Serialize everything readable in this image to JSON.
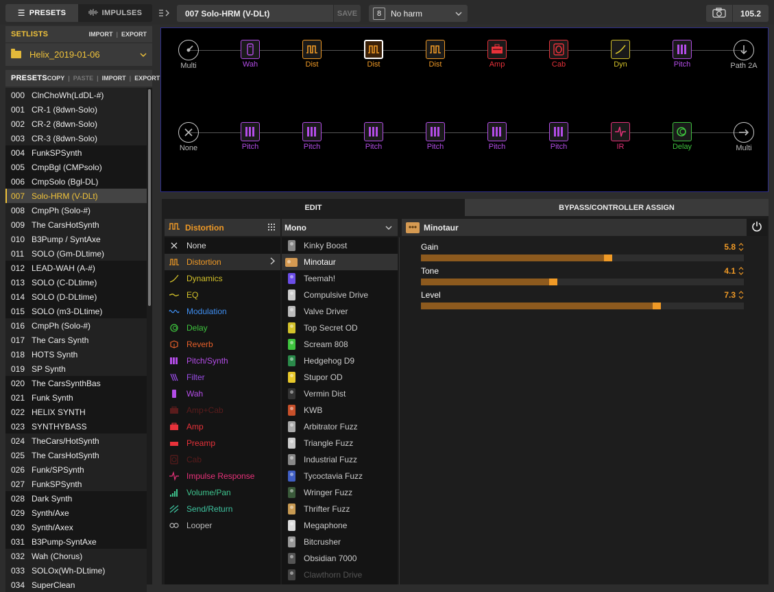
{
  "top_bar": {
    "presets_tab": "PRESETS",
    "impulses_tab": "IMPULSES",
    "preset_title": "007  Solo-HRM (V-DLt)",
    "save_label": "SAVE",
    "snapshot_number": "8",
    "snapshot_name": "No harm",
    "tempo": "105.2"
  },
  "setlists": {
    "title": "SETLISTS",
    "import_label": "IMPORT",
    "export_label": "EXPORT",
    "current": "Helix_2019-01-06"
  },
  "presets": {
    "title": "PRESETS",
    "copy_label": "COPY",
    "paste_label": "PASTE",
    "import_label": "IMPORT",
    "export_label": "EXPORT",
    "selected_index": 7,
    "items": [
      {
        "num": "000",
        "name": "ClnChoWh(LdDL-#)"
      },
      {
        "num": "001",
        "name": "CR-1 (8dwn-Solo)"
      },
      {
        "num": "002",
        "name": "CR-2 (8dwn-Solo)"
      },
      {
        "num": "003",
        "name": "CR-3 (8dwn-Solo)"
      },
      {
        "num": "004",
        "name": "FunkSPSynth"
      },
      {
        "num": "005",
        "name": "CmpBgl (CMPsolo)"
      },
      {
        "num": "006",
        "name": "CmpSolo (Bgl-DL)"
      },
      {
        "num": "007",
        "name": "Solo-HRM (V-DLt)"
      },
      {
        "num": "008",
        "name": "CmpPh (Solo-#)"
      },
      {
        "num": "009",
        "name": "The CarsHotSynth"
      },
      {
        "num": "010",
        "name": "B3Pump / SyntAxe"
      },
      {
        "num": "011",
        "name": "SOLO (Gm-DLtime)"
      },
      {
        "num": "012",
        "name": "LEAD-WAH (A-#)"
      },
      {
        "num": "013",
        "name": "SOLO (C-DLtime)"
      },
      {
        "num": "014",
        "name": "SOLO (D-DLtime)"
      },
      {
        "num": "015",
        "name": "SOLO (m3-DLtime)"
      },
      {
        "num": "016",
        "name": "CmpPh (Solo-#)"
      },
      {
        "num": "017",
        "name": "The Cars Synth"
      },
      {
        "num": "018",
        "name": "HOTS Synth"
      },
      {
        "num": "019",
        "name": "SP Synth"
      },
      {
        "num": "020",
        "name": "The CarsSynthBas"
      },
      {
        "num": "021",
        "name": "Funk Synth"
      },
      {
        "num": "022",
        "name": "HELIX SYNTH"
      },
      {
        "num": "023",
        "name": "SYNTHYBASS"
      },
      {
        "num": "024",
        "name": "TheCars/HotSynth"
      },
      {
        "num": "025",
        "name": "The CarsHotSynth"
      },
      {
        "num": "026",
        "name": "Funk/SPSynth"
      },
      {
        "num": "027",
        "name": "FunkSPSynth"
      },
      {
        "num": "028",
        "name": "Dark Synth"
      },
      {
        "num": "029",
        "name": "Synth/Axe"
      },
      {
        "num": "030",
        "name": "Synth/Axex"
      },
      {
        "num": "031",
        "name": "B3Pump-SyntAxe"
      },
      {
        "num": "032",
        "name": "Wah (Chorus)"
      },
      {
        "num": "033",
        "name": "SOLOx(Wh-DLtime)"
      },
      {
        "num": "034",
        "name": "SuperClean"
      }
    ]
  },
  "signal_path": {
    "row1": [
      {
        "label": "Multi",
        "kind": "input",
        "color": "#bbbbbb"
      },
      {
        "label": "Wah",
        "kind": "wah",
        "color": "#b44de8"
      },
      {
        "label": "Dist",
        "kind": "dist",
        "color": "#f09a26"
      },
      {
        "label": "Dist",
        "kind": "dist",
        "color": "#f09a26",
        "selected": true
      },
      {
        "label": "Dist",
        "kind": "dist",
        "color": "#f09a26"
      },
      {
        "label": "Amp",
        "kind": "amp",
        "color": "#e8323a"
      },
      {
        "label": "Cab",
        "kind": "cab",
        "color": "#e8323a"
      },
      {
        "label": "Dyn",
        "kind": "dyn",
        "color": "#d4c22a"
      },
      {
        "label": "Pitch",
        "kind": "pitch",
        "color": "#b44de8"
      },
      {
        "label": "Path 2A",
        "kind": "split",
        "color": "#bbbbbb"
      }
    ],
    "row2": [
      {
        "label": "None",
        "kind": "none",
        "color": "#bbbbbb"
      },
      {
        "label": "Pitch",
        "kind": "pitch",
        "color": "#b44de8"
      },
      {
        "label": "Pitch",
        "kind": "pitch",
        "color": "#b44de8"
      },
      {
        "label": "Pitch",
        "kind": "pitch",
        "color": "#b44de8"
      },
      {
        "label": "Pitch",
        "kind": "pitch",
        "color": "#b44de8"
      },
      {
        "label": "Pitch",
        "kind": "pitch",
        "color": "#b44de8"
      },
      {
        "label": "Pitch",
        "kind": "pitch",
        "color": "#b44de8"
      },
      {
        "label": "IR",
        "kind": "ir",
        "color": "#e8327a"
      },
      {
        "label": "Delay",
        "kind": "delay",
        "color": "#3ec43e"
      },
      {
        "label": "Multi",
        "kind": "output",
        "color": "#bbbbbb"
      }
    ]
  },
  "tabs": {
    "edit": "EDIT",
    "bypass": "BYPASS/CONTROLLER ASSIGN"
  },
  "categories": {
    "header": "Distortion",
    "items": [
      {
        "label": "None",
        "color": "#dddddd",
        "icon": "x-icon"
      },
      {
        "label": "Distortion",
        "color": "#f09a26",
        "icon": "distortion-icon",
        "selected": true
      },
      {
        "label": "Dynamics",
        "color": "#d4c22a",
        "icon": "dynamics-icon"
      },
      {
        "label": "EQ",
        "color": "#d4c22a",
        "icon": "eq-icon"
      },
      {
        "label": "Modulation",
        "color": "#3f8ef0",
        "icon": "modulation-icon"
      },
      {
        "label": "Delay",
        "color": "#3ec43e",
        "icon": "delay-icon"
      },
      {
        "label": "Reverb",
        "color": "#e8602a",
        "icon": "reverb-icon"
      },
      {
        "label": "Pitch/Synth",
        "color": "#b44de8",
        "icon": "pitch-icon"
      },
      {
        "label": "Filter",
        "color": "#9b4de8",
        "icon": "filter-icon"
      },
      {
        "label": "Wah",
        "color": "#b44de8",
        "icon": "wah-icon"
      },
      {
        "label": "Amp+Cab",
        "color": "#5a1c1c",
        "icon": "amp-cab-icon"
      },
      {
        "label": "Amp",
        "color": "#e8323a",
        "icon": "amp-icon"
      },
      {
        "label": "Preamp",
        "color": "#e8323a",
        "icon": "preamp-icon"
      },
      {
        "label": "Cab",
        "color": "#5a1c1c",
        "icon": "cab-icon"
      },
      {
        "label": "Impulse Response",
        "color": "#e8327a",
        "icon": "ir-icon"
      },
      {
        "label": "Volume/Pan",
        "color": "#3ec48e",
        "icon": "volume-icon"
      },
      {
        "label": "Send/Return",
        "color": "#3ec4a0",
        "icon": "send-return-icon"
      },
      {
        "label": "Looper",
        "color": "#bbbbbb",
        "icon": "looper-icon"
      }
    ]
  },
  "models": {
    "header": "Mono",
    "items": [
      {
        "label": "Kinky Boost",
        "color": "#888888"
      },
      {
        "label": "Minotaur",
        "color": "#d59a52",
        "selected": true
      },
      {
        "label": "Teemah!",
        "color": "#6b4de8"
      },
      {
        "label": "Compulsive Drive",
        "color": "#cccccc"
      },
      {
        "label": "Valve Driver",
        "color": "#bbbbbb"
      },
      {
        "label": "Top Secret OD",
        "color": "#d4c22a"
      },
      {
        "label": "Scream 808",
        "color": "#3ec43e"
      },
      {
        "label": "Hedgehog D9",
        "color": "#2a8a4a"
      },
      {
        "label": "Stupor OD",
        "color": "#e8c82a"
      },
      {
        "label": "Vermin Dist",
        "color": "#333333"
      },
      {
        "label": "KWB",
        "color": "#c8502a"
      },
      {
        "label": "Arbitrator Fuzz",
        "color": "#aaaaaa"
      },
      {
        "label": "Triangle Fuzz",
        "color": "#cccccc"
      },
      {
        "label": "Industrial Fuzz",
        "color": "#888888"
      },
      {
        "label": "Tycoctavia Fuzz",
        "color": "#3f5ec4"
      },
      {
        "label": "Wringer Fuzz",
        "color": "#3a5a3a"
      },
      {
        "label": "Thrifter Fuzz",
        "color": "#c89a52"
      },
      {
        "label": "Megaphone",
        "color": "#dddddd"
      },
      {
        "label": "Bitcrusher",
        "color": "#999999"
      },
      {
        "label": "Obsidian 7000",
        "color": "#555555"
      },
      {
        "label": "Clawthorn Drive",
        "color": "#444444",
        "dim": true
      }
    ]
  },
  "params": {
    "model_name": "Minotaur",
    "items": [
      {
        "name": "Gain",
        "value": "5.8",
        "fraction": 0.58
      },
      {
        "name": "Tone",
        "value": "4.1",
        "fraction": 0.41
      },
      {
        "name": "Level",
        "value": "7.3",
        "fraction": 0.73
      }
    ]
  }
}
